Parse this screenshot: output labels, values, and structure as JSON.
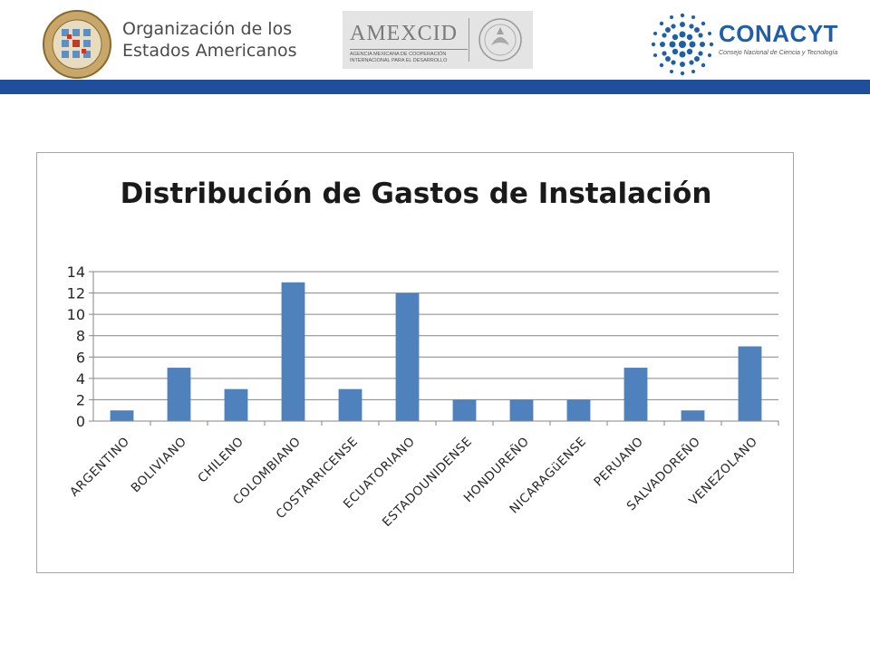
{
  "header": {
    "oas_line1": "Organización de los",
    "oas_line2": "Estados Americanos",
    "amexcid_title": "AMEXCID",
    "amexcid_sub1": "AGENCIA MEXICANA DE COOPERACIÓN",
    "amexcid_sub2": "INTERNACIONAL PARA EL DESARROLLO",
    "conacyt_name": "CONACYT",
    "conacyt_sub": "Consejo Nacional de Ciencia y Tecnología",
    "band_color": "#1f4e9a",
    "oas_seal_icon": "oas-seal-icon",
    "eagle_icon": "mexico-eagle-seal-icon",
    "conacyt_icon": "conacyt-dots-icon"
  },
  "chart_data": {
    "type": "bar",
    "title": "Distribución de Gastos de Instalación",
    "categories": [
      "ARGENTINO",
      "BOLIVIANO",
      "CHILENO",
      "COLOMBIANO",
      "COSTARRICENSE",
      "ECUATORIANO",
      "ESTADOUNIDENSE",
      "HONDUREÑO",
      "NICARAGüENSE",
      "PERUANO",
      "SALVADOREÑO",
      "VENEZOLANO"
    ],
    "values": [
      1,
      5,
      3,
      13,
      3,
      12,
      2,
      2,
      2,
      5,
      1,
      7
    ],
    "ylim": [
      0,
      14
    ],
    "yticks": [
      "0",
      "2",
      "4",
      "6",
      "8",
      "10",
      "12",
      "14"
    ],
    "grid": true,
    "bar_color": "#4f81bd",
    "legend": "none"
  }
}
